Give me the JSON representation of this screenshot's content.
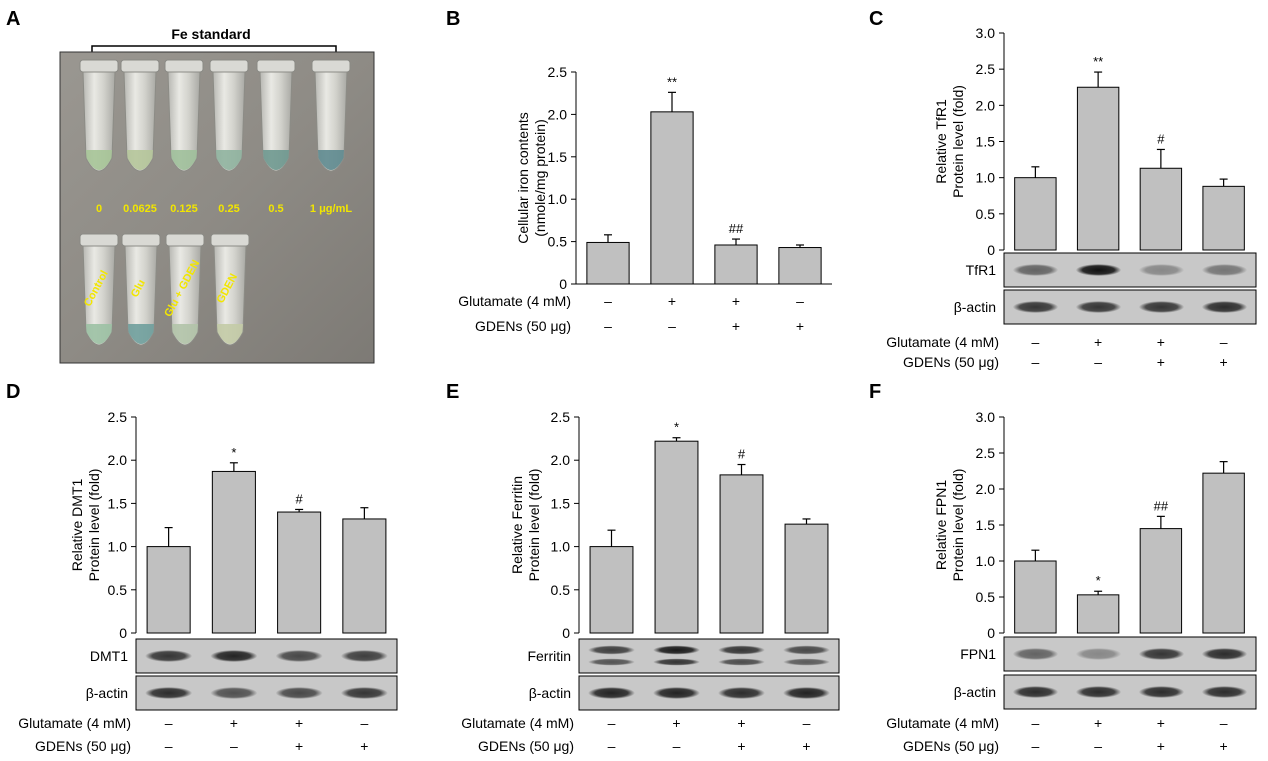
{
  "panel_a": {
    "letter": "A",
    "title": "Fe standard",
    "standard_labels": [
      "0",
      "0.0625",
      "0.125",
      "0.25",
      "0.5",
      "1 μg/mL"
    ],
    "sample_labels": [
      "Control",
      "Glu",
      "Glu + GDEN",
      "GDEN"
    ]
  },
  "treatment_rows": {
    "glutamate": {
      "label": "Glutamate (4 mM)",
      "signs": [
        "–",
        "+",
        "+",
        "–"
      ]
    },
    "gdens": {
      "label": "GDENs (50 μg)",
      "signs": [
        "–",
        "–",
        "+",
        "+"
      ]
    }
  },
  "chart_data": [
    {
      "panel": "B",
      "type": "bar",
      "ylabel": [
        "Cellular iron contents",
        "(nmole/mg protein)"
      ],
      "ylim": [
        0,
        2.5
      ],
      "yticks": [
        "0",
        "0.5",
        "1.0",
        "1.5",
        "2.0",
        "2.5"
      ],
      "values": [
        0.49,
        2.03,
        0.46,
        0.43
      ],
      "errors": [
        0.09,
        0.23,
        0.07,
        0.03
      ],
      "significance": [
        "",
        "**",
        "##",
        ""
      ],
      "blots": []
    },
    {
      "panel": "C",
      "type": "bar",
      "ylabel": [
        "Relative TfR1",
        "Protein level (fold)"
      ],
      "ylim": [
        0,
        3.0
      ],
      "yticks": [
        "0",
        "0.5",
        "1.0",
        "1.5",
        "2.0",
        "2.5",
        "3.0"
      ],
      "values": [
        1.0,
        2.25,
        1.13,
        0.88
      ],
      "errors": [
        0.15,
        0.21,
        0.26,
        0.1
      ],
      "significance": [
        "",
        "**",
        "#",
        ""
      ],
      "blots": [
        {
          "label": "TfR1",
          "intensity": [
            0.55,
            1.0,
            0.35,
            0.45
          ],
          "double": false
        },
        {
          "label": "β-actin",
          "intensity": [
            0.8,
            0.8,
            0.8,
            0.85
          ],
          "double": false
        }
      ]
    },
    {
      "panel": "D",
      "type": "bar",
      "ylabel": [
        "Relative DMT1",
        "Protein level (fold)"
      ],
      "ylim": [
        0,
        2.5
      ],
      "yticks": [
        "0",
        "0.5",
        "1.0",
        "1.5",
        "2.0",
        "2.5"
      ],
      "values": [
        1.0,
        1.87,
        1.4,
        1.32
      ],
      "errors": [
        0.22,
        0.1,
        0.03,
        0.13
      ],
      "significance": [
        "",
        "*",
        "#",
        ""
      ],
      "blots": [
        {
          "label": "DMT1",
          "intensity": [
            0.8,
            0.9,
            0.7,
            0.75
          ],
          "double": false
        },
        {
          "label": "β-actin",
          "intensity": [
            0.85,
            0.65,
            0.7,
            0.8
          ],
          "double": false
        }
      ]
    },
    {
      "panel": "E",
      "type": "bar",
      "ylabel": [
        "Relative Ferritin",
        "Protein level (fold)"
      ],
      "ylim": [
        0,
        2.5
      ],
      "yticks": [
        "0",
        "0.5",
        "1.0",
        "1.5",
        "2.0",
        "2.5"
      ],
      "values": [
        1.0,
        2.22,
        1.83,
        1.26
      ],
      "errors": [
        0.19,
        0.04,
        0.12,
        0.06
      ],
      "significance": [
        "",
        "*",
        "#",
        ""
      ],
      "blots": [
        {
          "label": "Ferritin",
          "intensity": [
            0.75,
            0.95,
            0.8,
            0.7
          ],
          "double": true
        },
        {
          "label": "β-actin",
          "intensity": [
            0.9,
            0.9,
            0.85,
            0.9
          ],
          "double": false
        }
      ]
    },
    {
      "panel": "F",
      "type": "bar",
      "ylabel": [
        "Relative FPN1",
        "Protein level (fold)"
      ],
      "ylim": [
        0,
        3.0
      ],
      "yticks": [
        "0",
        "0.5",
        "1.0",
        "1.5",
        "2.0",
        "2.5",
        "3.0"
      ],
      "values": [
        1.0,
        0.53,
        1.45,
        2.22
      ],
      "errors": [
        0.15,
        0.05,
        0.17,
        0.16
      ],
      "significance": [
        "",
        "*",
        "##",
        ""
      ],
      "blots": [
        {
          "label": "FPN1",
          "intensity": [
            0.55,
            0.35,
            0.8,
            0.85
          ],
          "double": false
        },
        {
          "label": "β-actin",
          "intensity": [
            0.85,
            0.85,
            0.85,
            0.85
          ],
          "double": false
        }
      ]
    }
  ]
}
